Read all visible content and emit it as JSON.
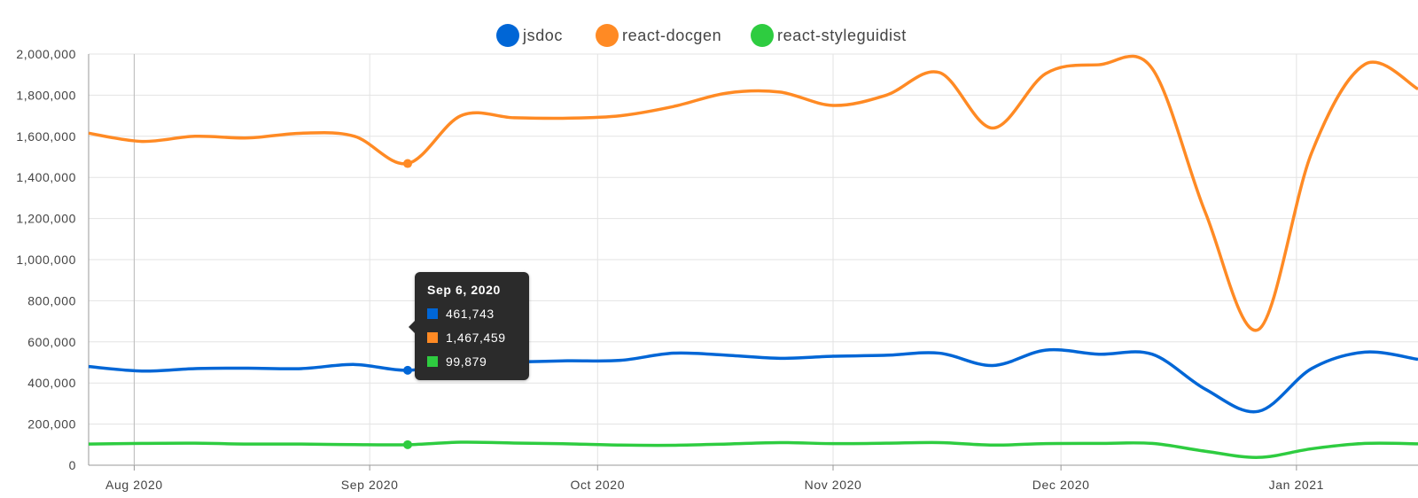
{
  "chart_data": {
    "type": "line",
    "title": "",
    "xlabel": "",
    "ylabel": "",
    "ylim": [
      0,
      2000000
    ],
    "y_ticks": [
      0,
      200000,
      400000,
      600000,
      800000,
      1000000,
      1200000,
      1400000,
      1600000,
      1800000,
      2000000
    ],
    "y_tick_labels": [
      "0",
      "200,000",
      "400,000",
      "600,000",
      "800,000",
      "1,000,000",
      "1,200,000",
      "1,400,000",
      "1,600,000",
      "1,800,000",
      "2,000,000"
    ],
    "x_range": [
      "2020-07-26",
      "2021-01-17"
    ],
    "x_ticks": [
      "2020-08-01",
      "2020-09-01",
      "2020-10-01",
      "2020-11-01",
      "2020-12-01",
      "2021-01-01"
    ],
    "x_tick_labels": [
      "Aug 2020",
      "Sep 2020",
      "Oct 2020",
      "Nov 2020",
      "Dec 2020",
      "Jan 2021"
    ],
    "grid": true,
    "legend_position": "top-center",
    "x": [
      "2020-07-26",
      "2020-08-02",
      "2020-08-09",
      "2020-08-16",
      "2020-08-23",
      "2020-08-30",
      "2020-09-06",
      "2020-09-13",
      "2020-09-20",
      "2020-09-27",
      "2020-10-04",
      "2020-10-11",
      "2020-10-18",
      "2020-10-25",
      "2020-11-01",
      "2020-11-08",
      "2020-11-15",
      "2020-11-22",
      "2020-11-29",
      "2020-12-06",
      "2020-12-13",
      "2020-12-20",
      "2020-12-27",
      "2021-01-03",
      "2021-01-10",
      "2021-01-17"
    ],
    "series": [
      {
        "name": "jsdoc",
        "color": "#0066d6",
        "values": [
          480000,
          458000,
          470000,
          472000,
          470000,
          490000,
          461743,
          500000,
          502000,
          508000,
          510000,
          545000,
          535000,
          520000,
          530000,
          535000,
          545000,
          485000,
          560000,
          540000,
          540000,
          370000,
          262000,
          470000,
          550000,
          515000
        ]
      },
      {
        "name": "react-docgen",
        "color": "#ff8a24",
        "values": [
          1615000,
          1575000,
          1600000,
          1592000,
          1615000,
          1600000,
          1467459,
          1700000,
          1690000,
          1688000,
          1700000,
          1745000,
          1810000,
          1815000,
          1750000,
          1800000,
          1910000,
          1640000,
          1905000,
          1948000,
          1930000,
          1230000,
          660000,
          1520000,
          1950000,
          1830000
        ]
      },
      {
        "name": "react-styleguidist",
        "color": "#2ecc40",
        "values": [
          103000,
          106000,
          107000,
          103000,
          103000,
          100000,
          99879,
          112000,
          108000,
          104000,
          98000,
          97000,
          103000,
          110000,
          105000,
          107000,
          110000,
          98000,
          105000,
          106000,
          106000,
          68000,
          38000,
          80000,
          106000,
          104000
        ]
      }
    ]
  },
  "tooltip": {
    "date": "Sep 6, 2020",
    "rows": [
      {
        "value": "461,743",
        "color": "#0066d6"
      },
      {
        "value": "1,467,459",
        "color": "#ff8a24"
      },
      {
        "value": "99,879",
        "color": "#2ecc40"
      }
    ]
  }
}
